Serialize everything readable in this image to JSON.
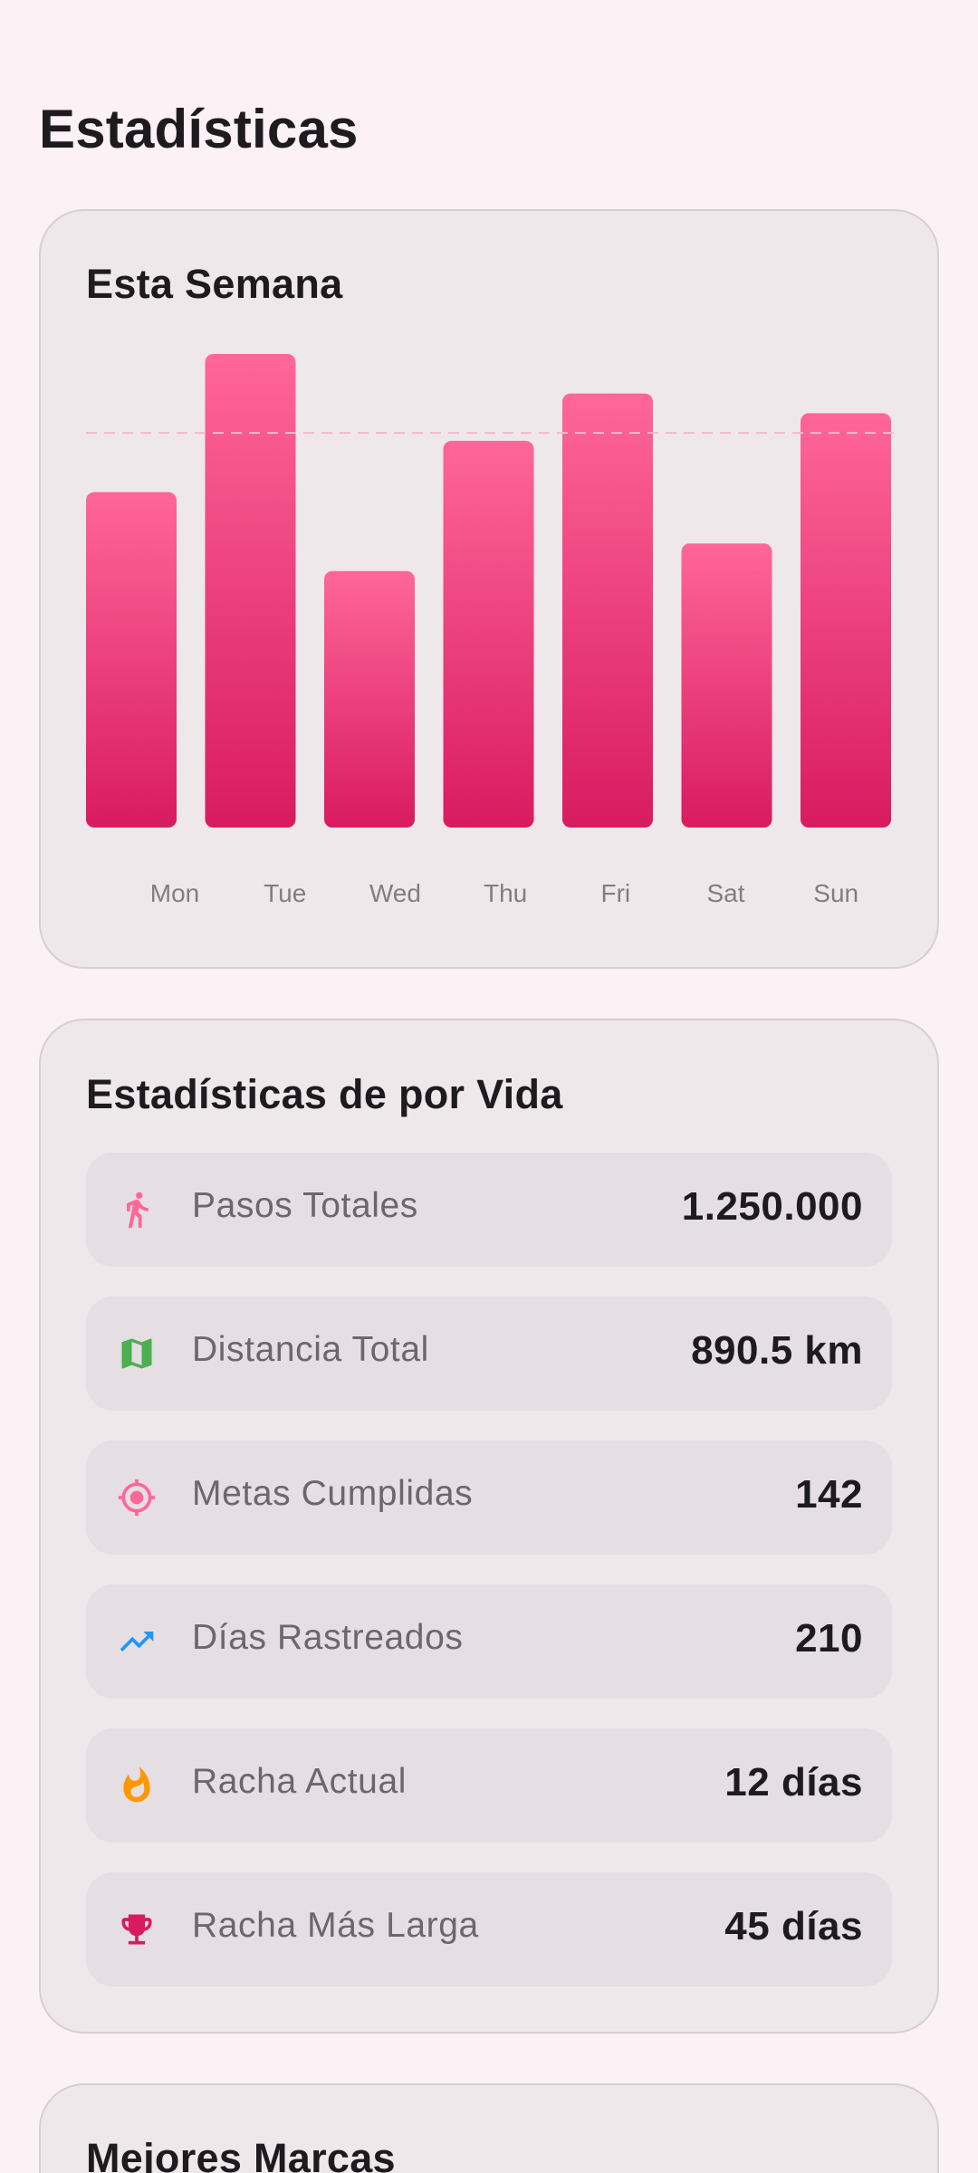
{
  "page": {
    "title": "Estadísticas"
  },
  "week_card": {
    "title": "Esta Semana"
  },
  "chart_data": {
    "type": "bar",
    "categories": [
      "Mon",
      "Tue",
      "Wed",
      "Thu",
      "Fri",
      "Sat",
      "Sun"
    ],
    "values": [
      8500,
      12000,
      6500,
      9800,
      11000,
      7200,
      10500
    ],
    "goal": 10000,
    "ylim": [
      0,
      12000
    ],
    "grid": false,
    "bar_color_top": "#ff6699",
    "bar_color_bottom": "#d81b60",
    "goal_line_color": "#f4b8cc"
  },
  "lifetime_card": {
    "title": "Estadísticas de por Vida",
    "rows": [
      {
        "label": "Pasos Totales",
        "value": "1.250.000",
        "icon": "walk-icon",
        "color": "#ff6699"
      },
      {
        "label": "Distancia Total",
        "value": "890.5 km",
        "icon": "map-icon",
        "color": "#4caf50"
      },
      {
        "label": "Metas Cumplidas",
        "value": "142",
        "icon": "target-icon",
        "color": "#ff6699"
      },
      {
        "label": "Días Rastreados",
        "value": "210",
        "icon": "trending-up-icon",
        "color": "#2196f3"
      },
      {
        "label": "Racha Actual",
        "value": "12 días",
        "icon": "fire-icon",
        "color": "#ff9800"
      },
      {
        "label": "Racha Más Larga",
        "value": "45 días",
        "icon": "trophy-icon",
        "color": "#d81b60"
      }
    ]
  },
  "best_card": {
    "title": "Mejores Marcas"
  }
}
